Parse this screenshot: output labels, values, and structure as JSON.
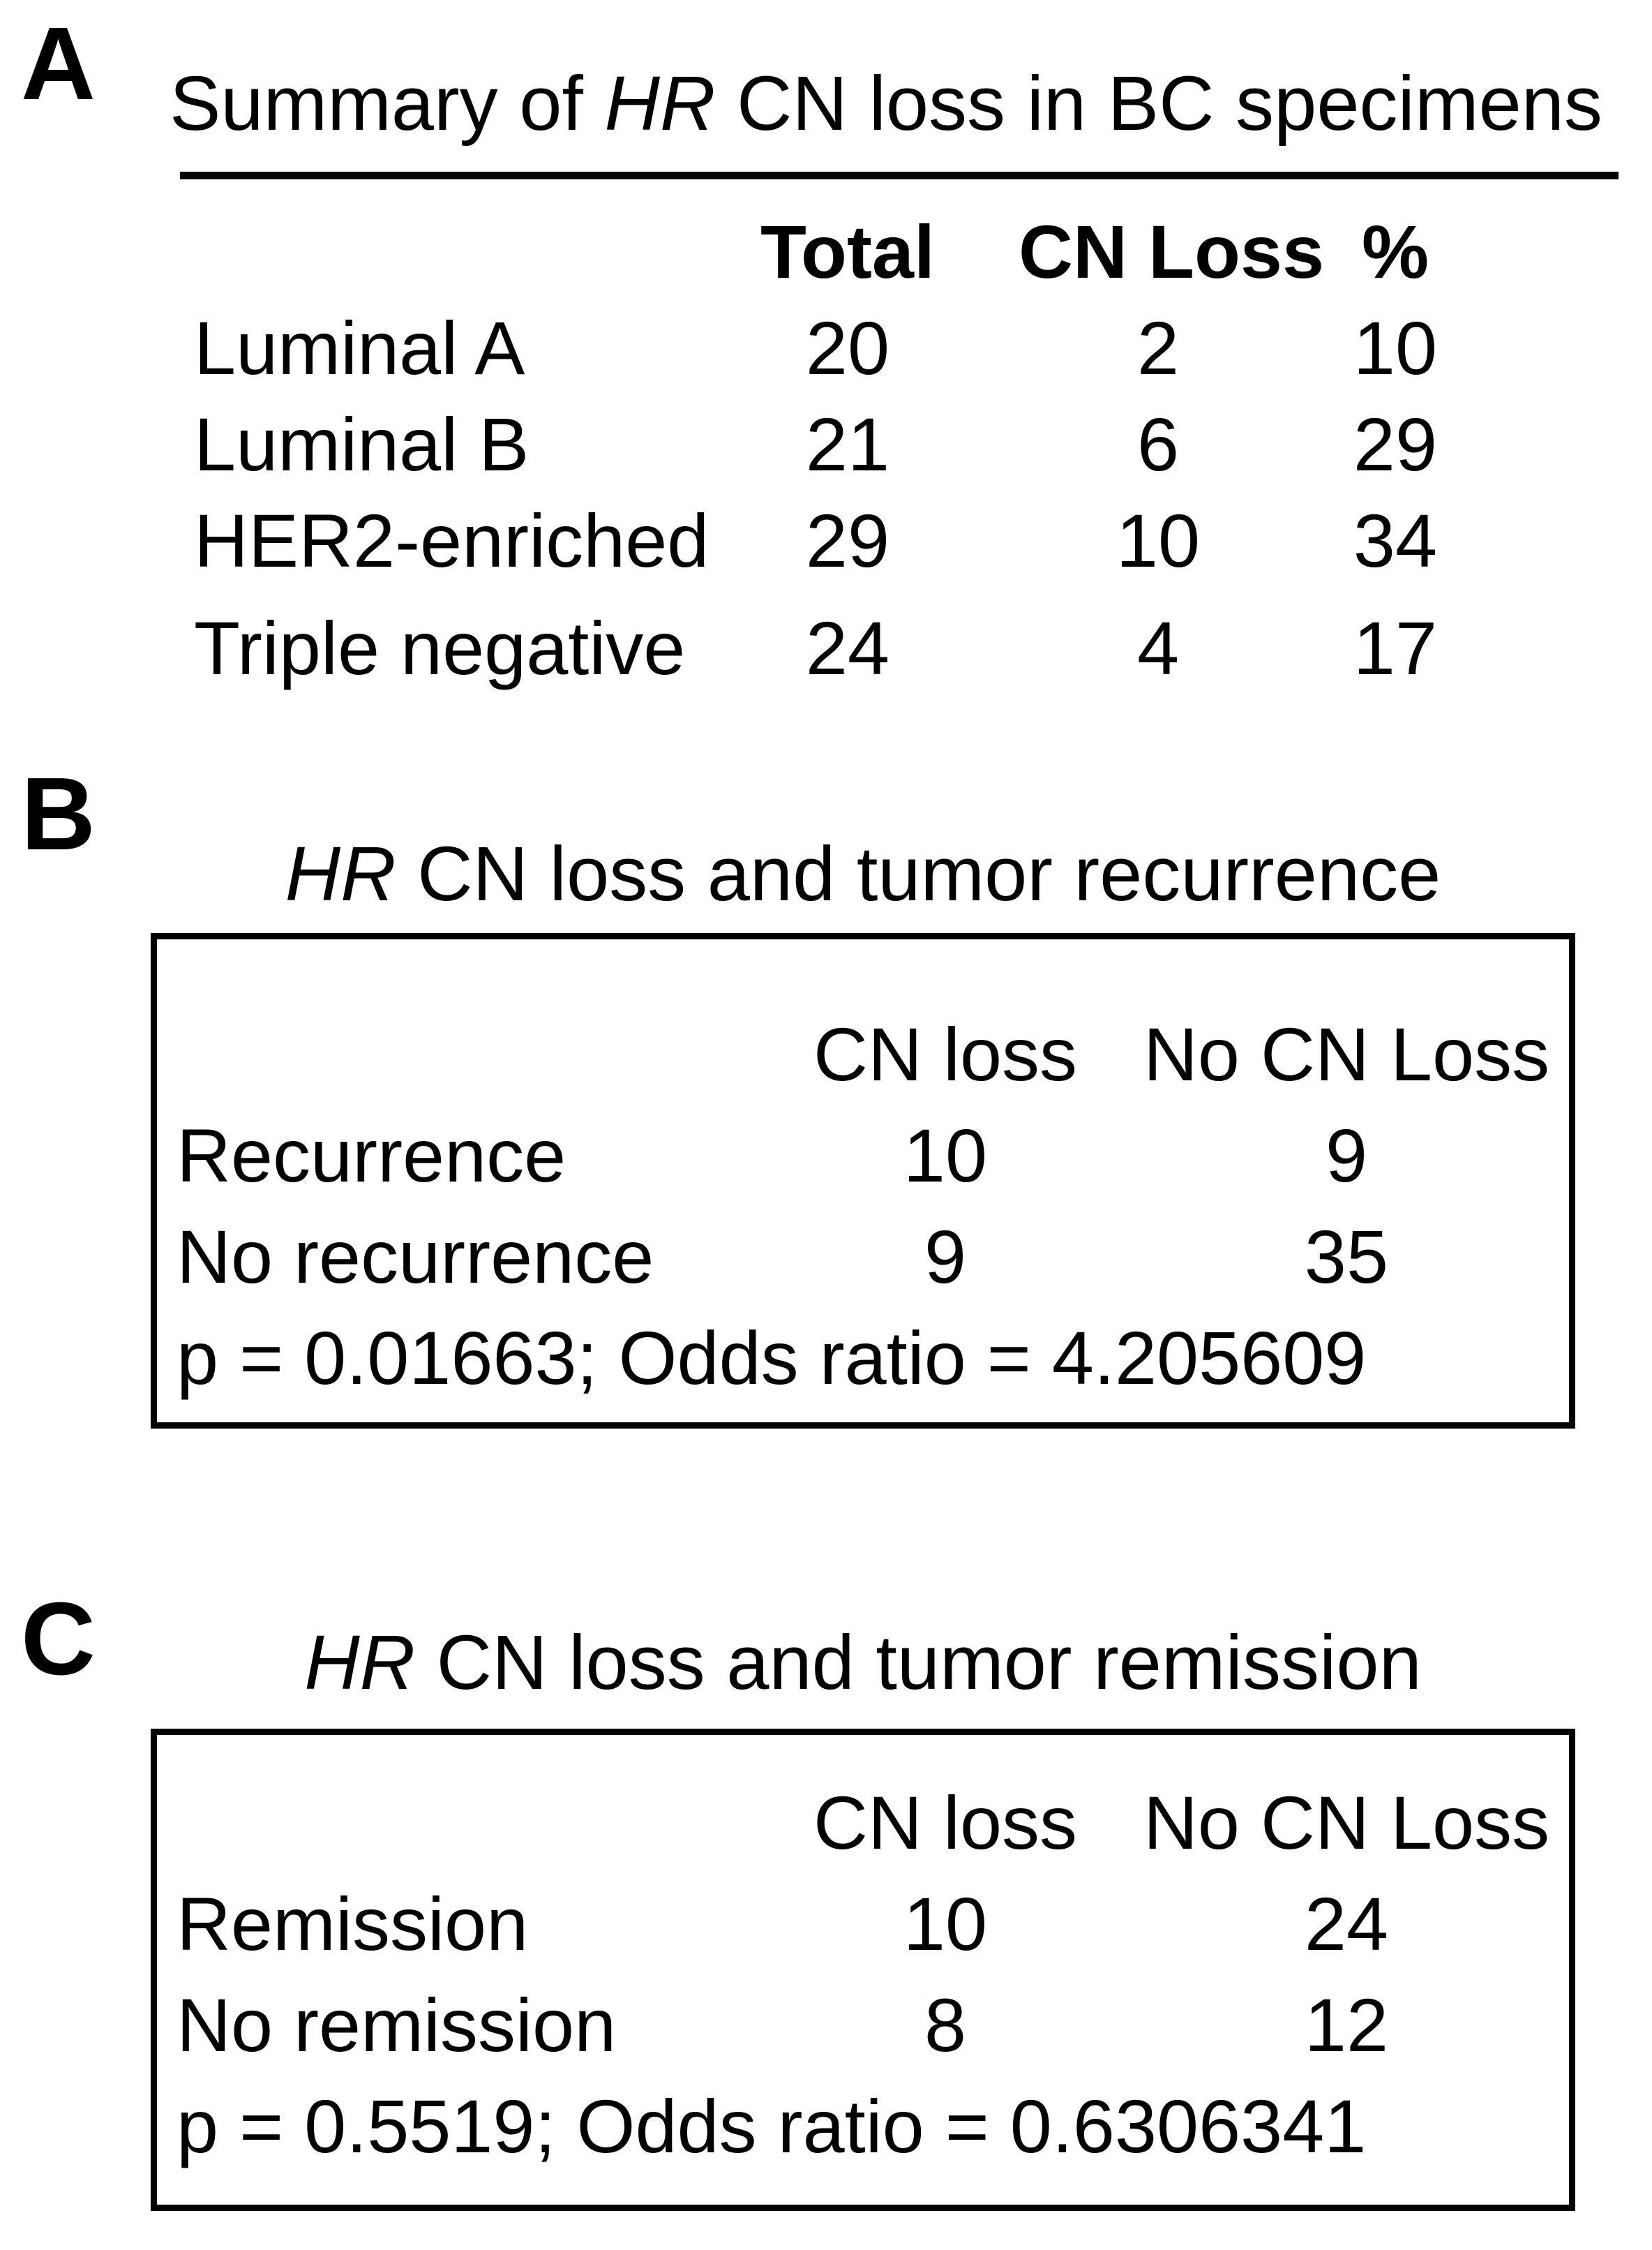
{
  "figure": {
    "colors": {
      "text": "#000000",
      "background": "#ffffff",
      "rule": "#000000"
    },
    "panel_a": {
      "label": "A",
      "title": {
        "prefix": "Summary of ",
        "gene": "HR",
        "suffix": " CN loss in BC specimens"
      },
      "columns": [
        "Total",
        "CN Loss",
        "%"
      ],
      "rows": [
        {
          "label": "Luminal A",
          "total": "20",
          "cn_loss": "2",
          "percent": "10"
        },
        {
          "label": "Luminal B",
          "total": "21",
          "cn_loss": "6",
          "percent": "29"
        },
        {
          "label": "HER2-enriched",
          "total": "29",
          "cn_loss": "10",
          "percent": "34"
        },
        {
          "label": "Triple negative",
          "total": "24",
          "cn_loss": "4",
          "percent": "17"
        }
      ]
    },
    "panel_b": {
      "label": "B",
      "title": {
        "gene": "HR",
        "rest": " CN loss and tumor recurrence"
      },
      "columns": [
        "CN loss",
        "No CN Loss"
      ],
      "rows": [
        {
          "label": "Recurrence",
          "cn_loss": "10",
          "no_cn_loss": "9"
        },
        {
          "label": "No recurrence",
          "cn_loss": "9",
          "no_cn_loss": "35"
        }
      ],
      "stats": "p = 0.01663; Odds ratio = 4.205609"
    },
    "panel_c": {
      "label": "C",
      "title": {
        "gene": "HR",
        "rest": " CN loss and tumor remission"
      },
      "columns": [
        "CN loss",
        "No CN Loss"
      ],
      "rows": [
        {
          "label": "Remission",
          "cn_loss": "10",
          "no_cn_loss": "24"
        },
        {
          "label": "No remission",
          "cn_loss": "8",
          "no_cn_loss": "12"
        }
      ],
      "stats": "p = 0.5519; Odds ratio = 0.6306341"
    }
  }
}
